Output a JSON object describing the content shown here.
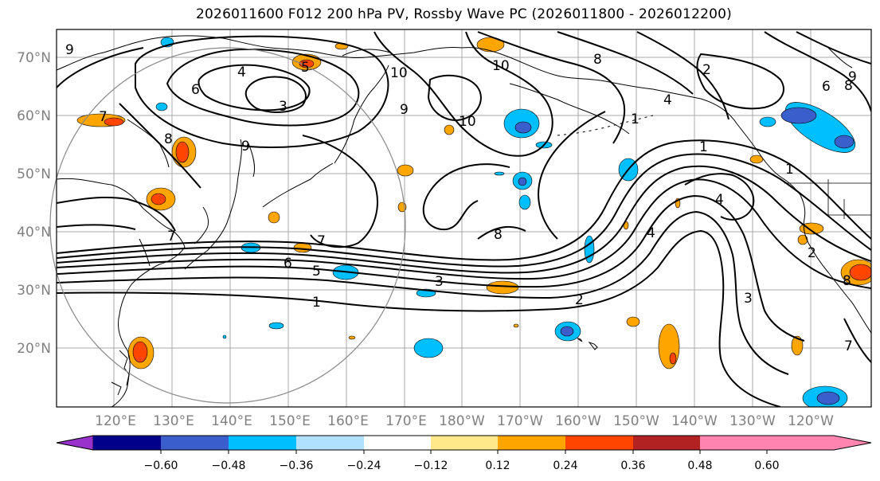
{
  "title": "2026011600 F012 200 hPa PV, Rossby Wave PC (2026011800 - 2026012200)",
  "lat_labels": [
    "70°N",
    "60°N",
    "50°N",
    "40°N",
    "30°N",
    "20°N"
  ],
  "lon_labels": [
    "120°E",
    "130°E",
    "140°E",
    "150°E",
    "160°E",
    "170°E",
    "180°W",
    "170°W",
    "160°W",
    "150°W",
    "140°W",
    "130°W",
    "120°W"
  ],
  "contour_labels": [
    "9",
    "4",
    "5",
    "3",
    "6",
    "10",
    "10",
    "9",
    "10",
    "8",
    "2",
    "4",
    "9",
    "6",
    "8",
    "7",
    "8",
    "9",
    "1",
    "1",
    "4",
    "1",
    "7",
    "8",
    "7",
    "6",
    "5",
    "3",
    "2",
    "4",
    "3",
    "2",
    "1",
    "8",
    "7"
  ],
  "colorbar": {
    "ticks": [
      "−0.60",
      "−0.48",
      "−0.36",
      "−0.24",
      "−0.12",
      "0.12",
      "0.24",
      "0.36",
      "0.48",
      "0.60"
    ],
    "colors": [
      "#9932cc",
      "#00008b",
      "#3a5fcd",
      "#00bfff",
      "#b0e2ff",
      "#ffffff",
      "#ffe88a",
      "#ffa500",
      "#ff4500",
      "#b22222",
      "#ff85b0"
    ]
  },
  "colors": {
    "coast": "#000000",
    "grid": "#a0a0a0",
    "circle": "#888888",
    "tick_text": "#808080"
  }
}
